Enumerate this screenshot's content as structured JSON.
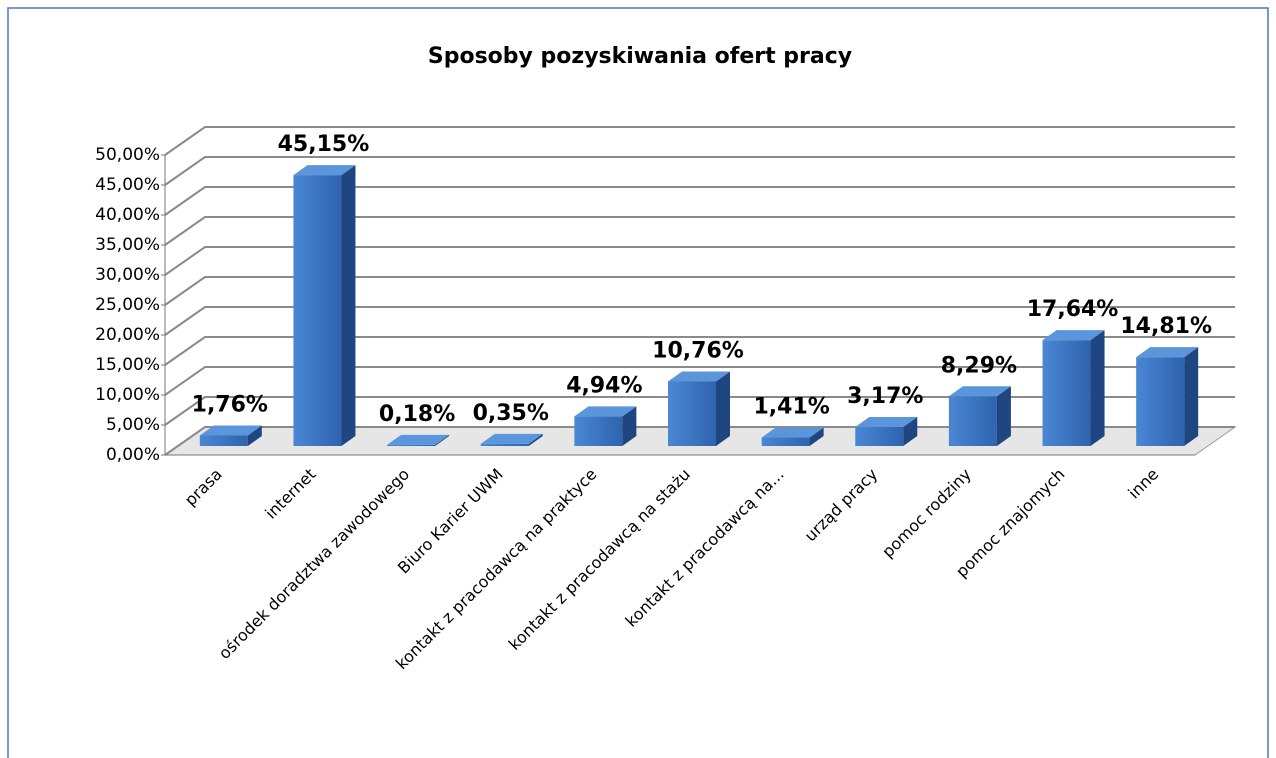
{
  "chart_data": {
    "type": "bar3d",
    "title": "Sposoby pozyskiwania ofert pracy",
    "categories": [
      "prasa",
      "internet",
      "ośrodek doradztwa zawodowego",
      "Biuro Karier UWM",
      "kontakt z pracodawcą na praktyce",
      "kontakt z pracodawcą na stażu",
      "kontakt z pracodawcą na...",
      "urząd pracy",
      "pomoc rodziny",
      "pomoc znajomych",
      "inne"
    ],
    "values": [
      1.76,
      45.15,
      0.18,
      0.35,
      4.94,
      10.76,
      1.41,
      3.17,
      8.29,
      17.64,
      14.81
    ],
    "value_labels": [
      "1,76%",
      "45,15%",
      "0,18%",
      "0,35%",
      "4,94%",
      "10,76%",
      "1,41%",
      "3,17%",
      "8,29%",
      "17,64%",
      "14,81%"
    ],
    "color": "#3a78c8",
    "ylim": [
      0,
      50
    ],
    "yticks": [
      {
        "value": 0,
        "label": "0,00%"
      },
      {
        "value": 5,
        "label": "5,00%"
      },
      {
        "value": 10,
        "label": "10,00%"
      },
      {
        "value": 15,
        "label": "15,00%"
      },
      {
        "value": 20,
        "label": "20,00%"
      },
      {
        "value": 25,
        "label": "25,00%"
      },
      {
        "value": 30,
        "label": "30,00%"
      },
      {
        "value": 35,
        "label": "35,00%"
      },
      {
        "value": 40,
        "label": "40,00%"
      },
      {
        "value": 45,
        "label": "45,00%"
      },
      {
        "value": 50,
        "label": "50,00%"
      }
    ],
    "grid": true
  }
}
